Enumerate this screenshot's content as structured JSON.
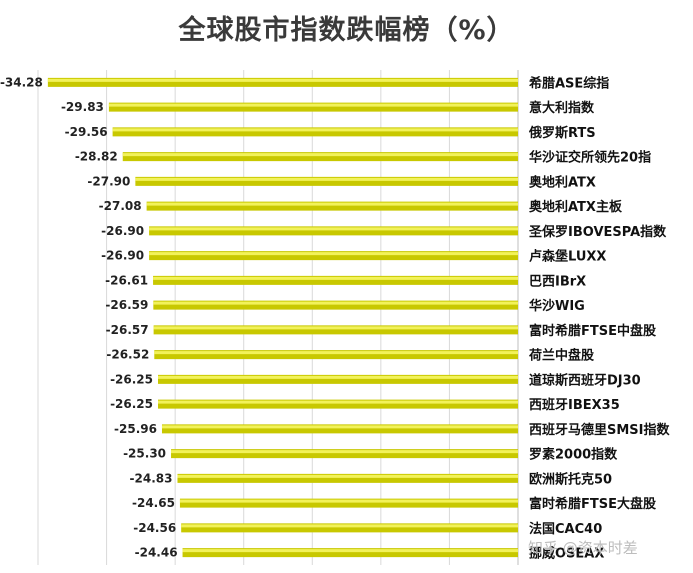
{
  "chart_data": {
    "type": "bar",
    "orientation": "horizontal",
    "title": "全球股市指数跌幅榜（%）",
    "categories": [
      "希腊ASE综指",
      "意大利指数",
      "俄罗斯RTS",
      "华沙证交所领先20指",
      "奥地利ATX",
      "奥地利ATX主板",
      "圣保罗IBOVESPA指数",
      "卢森堡LUXX",
      "巴西IBrX",
      "华沙WIG",
      "富时希腊FTSE中盘股",
      "荷兰中盘股",
      "道琼斯西班牙DJ30",
      "西班牙IBEX35",
      "西班牙马德里SMSI指数",
      "罗素2000指数",
      "欧洲斯托克50",
      "富时希腊FTSE大盘股",
      "法国CAC40",
      "挪威OSEAX"
    ],
    "values": [
      -34.28,
      -29.83,
      -29.56,
      -28.82,
      -27.9,
      -27.08,
      -26.9,
      -26.9,
      -26.61,
      -26.59,
      -26.57,
      -26.52,
      -26.25,
      -26.25,
      -25.96,
      -25.3,
      -24.83,
      -24.65,
      -24.56,
      -24.46
    ],
    "value_labels": [
      "-34.28",
      "-29.83",
      "-29.56",
      "-28.82",
      "-27.90",
      "-27.08",
      "-26.90",
      "-26.90",
      "-26.61",
      "-26.59",
      "-26.57",
      "-26.52",
      "-26.25",
      "-26.25",
      "-25.96",
      "-25.30",
      "-24.83",
      "-24.65",
      "-24.56",
      "-24.46"
    ],
    "xlim": [
      -35,
      0
    ],
    "grid": true,
    "bar_color": "#c8c800",
    "bar_highlight": "#f2f25a",
    "grid_color": "#d9d9d9"
  },
  "watermark": "知乎 @资本时差"
}
